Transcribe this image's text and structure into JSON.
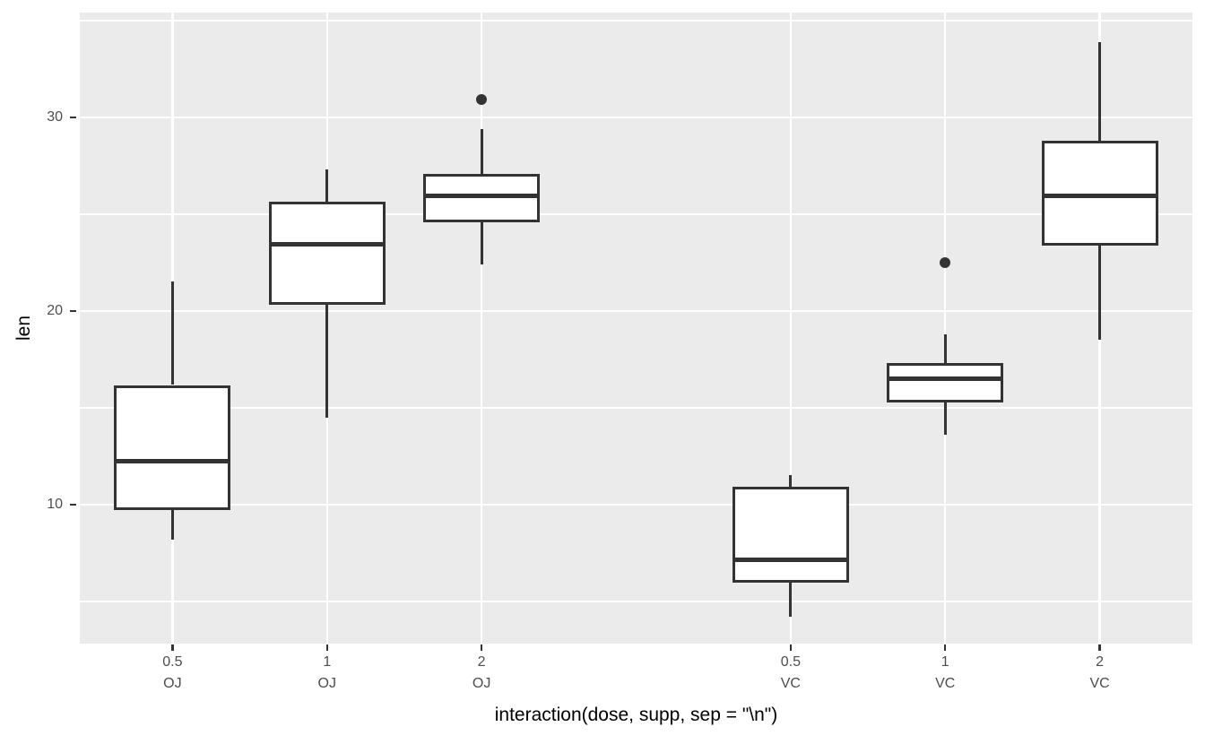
{
  "figure": {
    "background": "#FFFFFF"
  },
  "chart_data": {
    "type": "boxplot",
    "title": "",
    "xlabel": "interaction(dose, supp, sep = \"\\n\")",
    "ylabel": "len",
    "ylim": [
      2.82,
      35.41
    ],
    "y_major_ticks": [
      10,
      20,
      30
    ],
    "y_minor_ticks": [
      5,
      15,
      25,
      35
    ],
    "x_slot_count": 7,
    "legend": "none",
    "grid": "on",
    "groups": [
      {
        "dose": "0.5",
        "supp": "OJ",
        "slot": 0,
        "whisker_low": 8.2,
        "q1": 9.7,
        "median": 12.25,
        "q3": 16.175,
        "whisker_high": 21.5,
        "outliers": []
      },
      {
        "dose": "1",
        "supp": "OJ",
        "slot": 1,
        "whisker_low": 14.5,
        "q1": 20.3,
        "median": 23.45,
        "q3": 25.65,
        "whisker_high": 27.3,
        "outliers": []
      },
      {
        "dose": "2",
        "supp": "OJ",
        "slot": 2,
        "whisker_low": 22.4,
        "q1": 24.575,
        "median": 25.95,
        "q3": 27.075,
        "whisker_high": 29.4,
        "outliers": [
          30.9
        ]
      },
      {
        "dose": "0.5",
        "supp": "VC",
        "slot": 4,
        "whisker_low": 4.2,
        "q1": 5.95,
        "median": 7.15,
        "q3": 10.9,
        "whisker_high": 11.5,
        "outliers": []
      },
      {
        "dose": "1",
        "supp": "VC",
        "slot": 5,
        "whisker_low": 13.6,
        "q1": 15.275,
        "median": 16.5,
        "q3": 17.3,
        "whisker_high": 18.8,
        "outliers": [
          22.5
        ]
      },
      {
        "dose": "2",
        "supp": "VC",
        "slot": 6,
        "whisker_low": 18.5,
        "q1": 23.375,
        "median": 25.95,
        "q3": 28.8,
        "whisker_high": 33.9,
        "outliers": []
      }
    ],
    "style": {
      "panel_bg": "#EBEBEB",
      "grid_color": "#FFFFFF",
      "stroke": "#333333",
      "box_fill": "#FFFFFF",
      "tick_label_color": "#4D4D4D",
      "title_color": "#000000"
    }
  }
}
